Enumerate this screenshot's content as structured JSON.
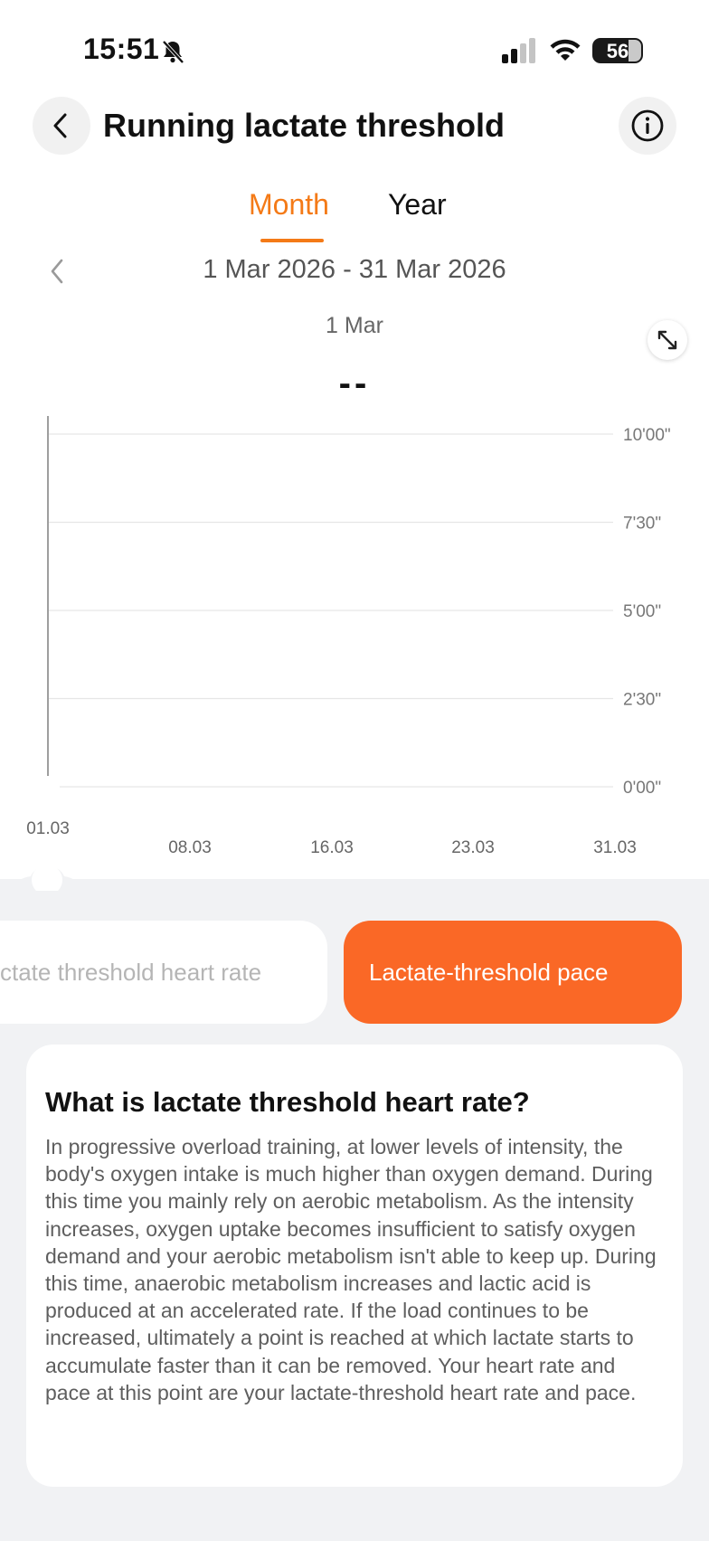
{
  "status_bar": {
    "time": "15:51",
    "battery_level": "56",
    "icons": [
      "bell-muted-icon",
      "cellular-signal-icon",
      "wifi-icon",
      "battery-icon"
    ]
  },
  "header": {
    "title": "Running lactate threshold",
    "back_icon": "chevron-left-icon",
    "info_icon": "info-icon"
  },
  "tabs": [
    {
      "label": "Month",
      "active": true
    },
    {
      "label": "Year",
      "active": false
    }
  ],
  "range": {
    "label": "1 Mar 2026 - 31 Mar 2026",
    "prev_icon": "chevron-left-icon"
  },
  "selection": {
    "date": "1 Mar",
    "value": "--"
  },
  "chart_data": {
    "type": "bar",
    "x_ticks": [
      "01.03",
      "08.03",
      "16.03",
      "23.03",
      "31.03"
    ],
    "y_ticks": [
      "10'00\"",
      "7'30\"",
      "5'00\"",
      "2'30\"",
      "0'00\""
    ],
    "ylim_seconds": [
      0,
      600
    ],
    "values": [],
    "grid": true,
    "selected_index": 0
  },
  "metric_tabs": [
    {
      "label": "Lactate threshold heart rate",
      "visible_label": "ctate threshold heart rate",
      "active": false
    },
    {
      "label": "Lactate-threshold pace",
      "active": true
    }
  ],
  "info_card": {
    "heading": "What is lactate threshold heart rate?",
    "body": "In progressive overload training, at lower levels of intensity, the body's oxygen intake is much higher than oxygen demand. During this time you mainly rely on aerobic metabolism. As the intensity increases, oxygen uptake becomes insufficient to satisfy oxygen demand and your aerobic metabolism isn't able to keep up. During this time, anaerobic metabolism increases and lactic acid is produced at an accelerated rate. If the load continues to be increased, ultimately a point is reached at which lactate starts to accumulate faster than it can be removed. Your heart rate and pace at this point are your lactate-threshold heart rate and pace."
  },
  "colors": {
    "accent": "#f47a17",
    "active_button": "#fa6826",
    "panel_bg": "#f1f2f4",
    "gridline": "#e6e6e6"
  }
}
